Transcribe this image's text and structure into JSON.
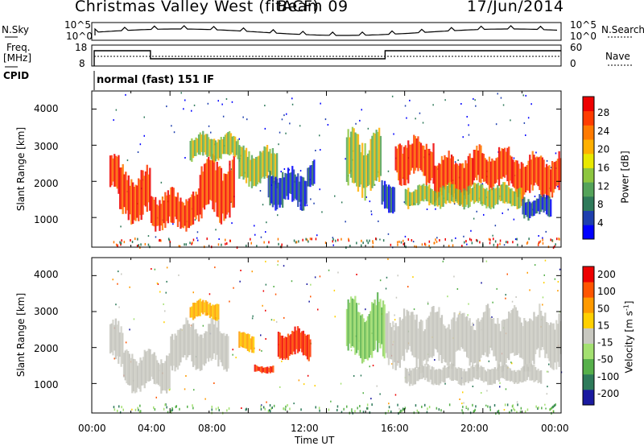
{
  "header": {
    "station": "Christmas Valley West (fitACF)",
    "beam": "Beam 09",
    "date": "17/Jun/2014"
  },
  "top_panels": {
    "nsky_label": "N.Sky",
    "nsky_ticks": [
      "10^5",
      "10^0"
    ],
    "nsearch_label": "N.Search",
    "nsearch_ticks": [
      "10^5",
      "10^0"
    ],
    "freq_label": "Freq.",
    "freq_unit": "[MHz]",
    "freq_ticks": [
      "18",
      "8"
    ],
    "nave_label": "Nave",
    "nave_ticks": [
      "60",
      "0"
    ],
    "cpid_label": "CPID",
    "cpid_mode": "normal (fast) 151 IF"
  },
  "chart_data": [
    {
      "type": "heatmap",
      "name": "power-panel",
      "ylabel": "Slant Range [km]",
      "yticks": [
        "4000",
        "3000",
        "2000",
        "1000"
      ],
      "ylim": [
        180,
        4500
      ],
      "xlim": [
        0,
        24
      ],
      "colorbar": {
        "label": "Power [dB]",
        "ticks": [
          "28",
          "24",
          "20",
          "16",
          "12",
          "8",
          "4"
        ],
        "colors": [
          "#0000ff",
          "#1e3fae",
          "#2f7a5a",
          "#54a35a",
          "#8dc63f",
          "#e8e800",
          "#ffb000",
          "#ff7a00",
          "#ff3c00",
          "#ee0000"
        ]
      },
      "regions": [
        {
          "t0": 0.9,
          "t1": 1.4,
          "r0": 1600,
          "r1": 2700,
          "level": "high"
        },
        {
          "t0": 1.4,
          "t1": 3.0,
          "r0": 900,
          "r1": 2300,
          "level": "high"
        },
        {
          "t0": 3.0,
          "t1": 5.5,
          "r0": 700,
          "r1": 1700,
          "level": "high"
        },
        {
          "t0": 5.5,
          "t1": 7.3,
          "r0": 1000,
          "r1": 2600,
          "level": "high"
        },
        {
          "t0": 5.0,
          "t1": 7.5,
          "r0": 2600,
          "r1": 3300,
          "level": "mid"
        },
        {
          "t0": 7.5,
          "t1": 9.5,
          "r0": 1900,
          "r1": 2900,
          "level": "mid"
        },
        {
          "t0": 9.0,
          "t1": 11.0,
          "r0": 1300,
          "r1": 2300,
          "level": "low"
        },
        {
          "t0": 11.0,
          "t1": 11.4,
          "r0": 1800,
          "r1": 2700,
          "level": "low"
        },
        {
          "t0": 13.0,
          "t1": 14.8,
          "r0": 1700,
          "r1": 3300,
          "level": "mid"
        },
        {
          "t0": 14.8,
          "t1": 15.5,
          "r0": 1200,
          "r1": 2000,
          "level": "low"
        },
        {
          "t0": 15.5,
          "t1": 17.5,
          "r0": 2000,
          "r1": 3200,
          "level": "high"
        },
        {
          "t0": 17.5,
          "t1": 19.5,
          "r0": 1500,
          "r1": 2700,
          "level": "high"
        },
        {
          "t0": 19.5,
          "t1": 21.5,
          "r0": 1800,
          "r1": 2900,
          "level": "high"
        },
        {
          "t0": 21.5,
          "t1": 24.0,
          "r0": 1600,
          "r1": 2700,
          "level": "high"
        },
        {
          "t0": 16.0,
          "t1": 22.0,
          "r0": 1300,
          "r1": 1900,
          "level": "mid"
        },
        {
          "t0": 22.0,
          "t1": 23.5,
          "r0": 1000,
          "r1": 1600,
          "level": "low"
        }
      ]
    },
    {
      "type": "heatmap",
      "name": "velocity-panel",
      "ylabel": "Slant Range [km]",
      "yticks": [
        "4000",
        "3000",
        "2000",
        "1000"
      ],
      "ylim": [
        180,
        4500
      ],
      "xlim": [
        0,
        24
      ],
      "xticks": [
        "00:00",
        "04:00",
        "08:00",
        "12:00",
        "16:00",
        "20:00",
        "00:00"
      ],
      "xlabel": "Time UT",
      "colorbar": {
        "label": "Velocity [m s",
        "label_sup": "-1",
        "label_close": "]",
        "ticks": [
          "200",
          "100",
          "50",
          "15",
          "-15",
          "-50",
          "-100",
          "-200"
        ],
        "colors": [
          "#1a1aa0",
          "#2e7a5a",
          "#56b04a",
          "#a3e070",
          "#c8c8c0",
          "#ffd000",
          "#ff9a00",
          "#ff5500",
          "#ee0000"
        ]
      },
      "regions": [
        {
          "t0": 0.9,
          "t1": 1.6,
          "r0": 1500,
          "r1": 2700,
          "level": "gray"
        },
        {
          "t0": 1.6,
          "t1": 4.0,
          "r0": 800,
          "r1": 1900,
          "level": "gray"
        },
        {
          "t0": 4.0,
          "t1": 7.0,
          "r0": 1400,
          "r1": 2700,
          "level": "gray"
        },
        {
          "t0": 5.0,
          "t1": 6.5,
          "r0": 2800,
          "r1": 3300,
          "level": "orange"
        },
        {
          "t0": 7.5,
          "t1": 8.3,
          "r0": 1900,
          "r1": 2400,
          "level": "orange"
        },
        {
          "t0": 9.5,
          "t1": 11.2,
          "r0": 1700,
          "r1": 2500,
          "level": "red"
        },
        {
          "t0": 8.3,
          "t1": 9.3,
          "r0": 1300,
          "r1": 1500,
          "level": "red"
        },
        {
          "t0": 13.0,
          "t1": 15.0,
          "r0": 1600,
          "r1": 3300,
          "level": "green"
        },
        {
          "t0": 15.0,
          "t1": 24.0,
          "r0": 1500,
          "r1": 3000,
          "level": "gray"
        },
        {
          "t0": 16.0,
          "t1": 23.0,
          "r0": 1000,
          "r1": 1500,
          "level": "gray"
        }
      ]
    }
  ]
}
